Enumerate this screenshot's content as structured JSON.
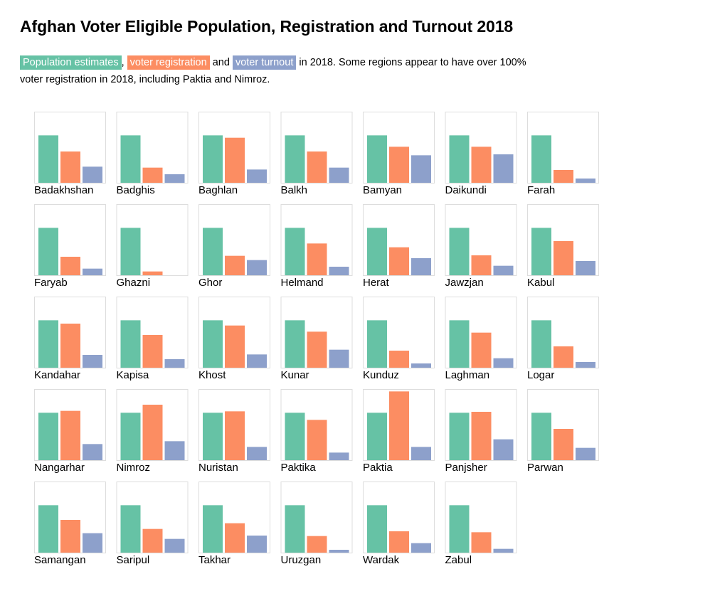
{
  "title": "Afghan Voter Eligible Population, Registration and Turnout 2018",
  "description": {
    "legend_population": "Population estimates",
    "sep1": ",",
    "legend_registration": "voter registration",
    "sep2": "and",
    "legend_turnout": "voter turnout",
    "tail_line1": "in 2018. Some regions appear to have over 100%",
    "tail_line2": "voter registration in 2018, including Paktia and Nimroz."
  },
  "colors": {
    "population": "#66c2a5",
    "registration": "#fc8d62",
    "turnout": "#8da0cb"
  },
  "chart_data": {
    "type": "bar",
    "layout": "small-multiples",
    "series": [
      {
        "name": "Population estimates",
        "key": "population"
      },
      {
        "name": "voter registration",
        "key": "registration"
      },
      {
        "name": "voter turnout",
        "key": "turnout"
      }
    ],
    "value_unit": "share of eligible population",
    "ylim": [
      0,
      1.5
    ],
    "regions": [
      {
        "name": "Badakhshan",
        "population": 1,
        "registration": 0.66,
        "turnout": 0.34
      },
      {
        "name": "Badghis",
        "population": 1,
        "registration": 0.32,
        "turnout": 0.18
      },
      {
        "name": "Baghlan",
        "population": 1,
        "registration": 0.95,
        "turnout": 0.28
      },
      {
        "name": "Balkh",
        "population": 1,
        "registration": 0.66,
        "turnout": 0.32
      },
      {
        "name": "Bamyan",
        "population": 1,
        "registration": 0.76,
        "turnout": 0.58
      },
      {
        "name": "Daikundi",
        "population": 1,
        "registration": 0.76,
        "turnout": 0.6
      },
      {
        "name": "Farah",
        "population": 1,
        "registration": 0.27,
        "turnout": 0.09
      },
      {
        "name": "Faryab",
        "population": 1,
        "registration": 0.39,
        "turnout": 0.14
      },
      {
        "name": "Ghazni",
        "population": 1,
        "registration": 0.08,
        "turnout": 0
      },
      {
        "name": "Ghor",
        "population": 1,
        "registration": 0.41,
        "turnout": 0.32
      },
      {
        "name": "Helmand",
        "population": 1,
        "registration": 0.67,
        "turnout": 0.18
      },
      {
        "name": "Herat",
        "population": 1,
        "registration": 0.59,
        "turnout": 0.36
      },
      {
        "name": "Jawzjan",
        "population": 1,
        "registration": 0.42,
        "turnout": 0.2
      },
      {
        "name": "Kabul",
        "population": 1,
        "registration": 0.72,
        "turnout": 0.3
      },
      {
        "name": "Kandahar",
        "population": 1,
        "registration": 0.93,
        "turnout": 0.27
      },
      {
        "name": "Kapisa",
        "population": 1,
        "registration": 0.69,
        "turnout": 0.18
      },
      {
        "name": "Khost",
        "population": 1,
        "registration": 0.89,
        "turnout": 0.28
      },
      {
        "name": "Kunar",
        "population": 1,
        "registration": 0.76,
        "turnout": 0.38
      },
      {
        "name": "Kunduz",
        "population": 1,
        "registration": 0.36,
        "turnout": 0.09
      },
      {
        "name": "Laghman",
        "population": 1,
        "registration": 0.74,
        "turnout": 0.2
      },
      {
        "name": "Logar",
        "population": 1,
        "registration": 0.45,
        "turnout": 0.12
      },
      {
        "name": "Nangarhar",
        "population": 1,
        "registration": 1.04,
        "turnout": 0.34
      },
      {
        "name": "Nimroz",
        "population": 1,
        "registration": 1.17,
        "turnout": 0.4
      },
      {
        "name": "Nuristan",
        "population": 1,
        "registration": 1.03,
        "turnout": 0.28
      },
      {
        "name": "Paktika",
        "population": 1,
        "registration": 0.85,
        "turnout": 0.16
      },
      {
        "name": "Paktia",
        "population": 1,
        "registration": 1.45,
        "turnout": 0.28
      },
      {
        "name": "Panjsher",
        "population": 1,
        "registration": 1.02,
        "turnout": 0.44
      },
      {
        "name": "Parwan",
        "population": 1,
        "registration": 0.66,
        "turnout": 0.26
      },
      {
        "name": "Samangan",
        "population": 1,
        "registration": 0.69,
        "turnout": 0.41
      },
      {
        "name": "Saripul",
        "population": 1,
        "registration": 0.5,
        "turnout": 0.29
      },
      {
        "name": "Takhar",
        "population": 1,
        "registration": 0.62,
        "turnout": 0.36
      },
      {
        "name": "Uruzgan",
        "population": 1,
        "registration": 0.35,
        "turnout": 0.06
      },
      {
        "name": "Wardak",
        "population": 1,
        "registration": 0.45,
        "turnout": 0.2
      },
      {
        "name": "Zabul",
        "population": 1,
        "registration": 0.43,
        "turnout": 0.08
      }
    ]
  }
}
